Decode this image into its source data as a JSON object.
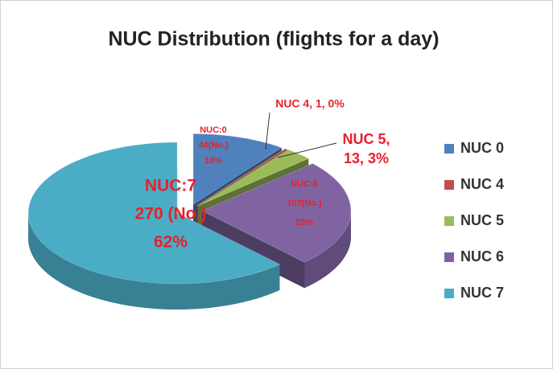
{
  "chart_data": {
    "type": "pie",
    "title": "NUC Distribution (flights for a day)",
    "categories": [
      "NUC 0",
      "NUC 4",
      "NUC 5",
      "NUC 6",
      "NUC 7"
    ],
    "values": [
      44,
      1,
      13,
      107,
      270
    ],
    "value_labels": [
      [
        "NUC:0",
        "44(No.)",
        "10%"
      ],
      [
        "NUC 4, 1, 0%"
      ],
      [
        "NUC 5,",
        "13, 3%"
      ],
      [
        "NUC:6",
        "107(No.)",
        "25%"
      ],
      [
        "NUC:7",
        "270 (No.)",
        "62%"
      ]
    ],
    "colors": [
      "#4f81bd",
      "#c0504d",
      "#9bbb59",
      "#8064a2",
      "#4bacc6"
    ],
    "legend": "right"
  }
}
